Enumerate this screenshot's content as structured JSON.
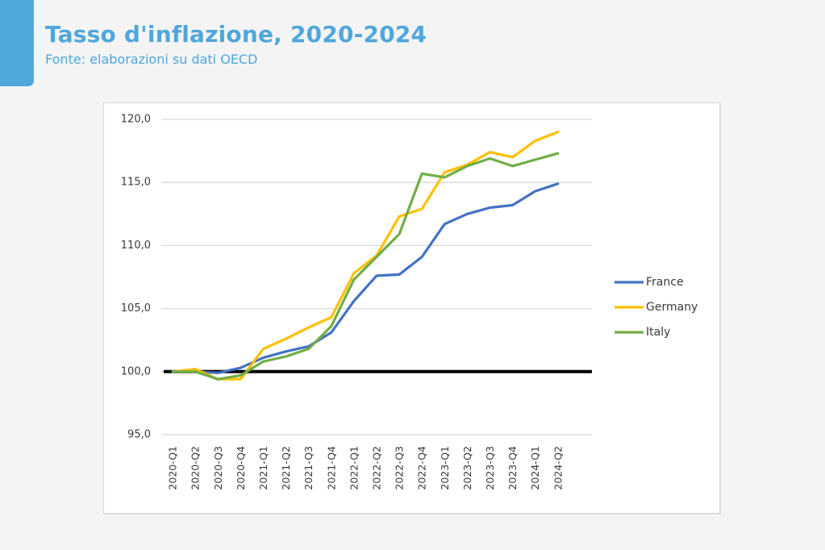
{
  "header": {
    "title": "Tasso d'inflazione, 2020-2024",
    "subtitle": "Fonte: elaborazioni su dati OECD",
    "accent_color": "#4fa7dc"
  },
  "chart_data": {
    "type": "line",
    "title": "Tasso d'inflazione, 2020-2024",
    "subtitle": "Fonte: elaborazioni su dati OECD",
    "xlabel": "",
    "ylabel": "",
    "ylim": [
      95,
      120
    ],
    "yticks": [
      95,
      100,
      105,
      110,
      115,
      120
    ],
    "ytick_labels": [
      "95,0",
      "100,0",
      "105,0",
      "110,0",
      "115,0",
      "120,0"
    ],
    "grid": true,
    "legend_position": "right",
    "baseline": 100,
    "categories": [
      "2020-Q1",
      "2020-Q2",
      "2020-Q3",
      "2020-Q4",
      "2021-Q1",
      "2021-Q2",
      "2021-Q3",
      "2021-Q4",
      "2022-Q1",
      "2022-Q2",
      "2022-Q3",
      "2022-Q4",
      "2023-Q1",
      "2023-Q2",
      "2023-Q3",
      "2023-Q4",
      "2024-Q1",
      "2024-Q2"
    ],
    "series": [
      {
        "name": "France",
        "color": "#4472c4",
        "values": [
          100.0,
          100.0,
          99.9,
          100.3,
          101.1,
          101.6,
          102.0,
          103.1,
          105.6,
          107.6,
          107.7,
          109.1,
          111.7,
          112.5,
          113.0,
          113.2,
          114.3,
          114.9
        ]
      },
      {
        "name": "Germany",
        "color": "#ffc000",
        "values": [
          100.0,
          100.2,
          99.4,
          99.4,
          101.8,
          102.6,
          103.5,
          104.3,
          107.8,
          109.2,
          112.3,
          112.9,
          115.8,
          116.4,
          117.4,
          117.0,
          118.3,
          119.0
        ]
      },
      {
        "name": "Italy",
        "color": "#70ad47",
        "values": [
          100.0,
          100.0,
          99.4,
          99.7,
          100.8,
          101.2,
          101.8,
          103.6,
          107.3,
          109.1,
          110.9,
          115.7,
          115.4,
          116.3,
          116.9,
          116.3,
          116.8,
          117.3
        ]
      }
    ]
  }
}
